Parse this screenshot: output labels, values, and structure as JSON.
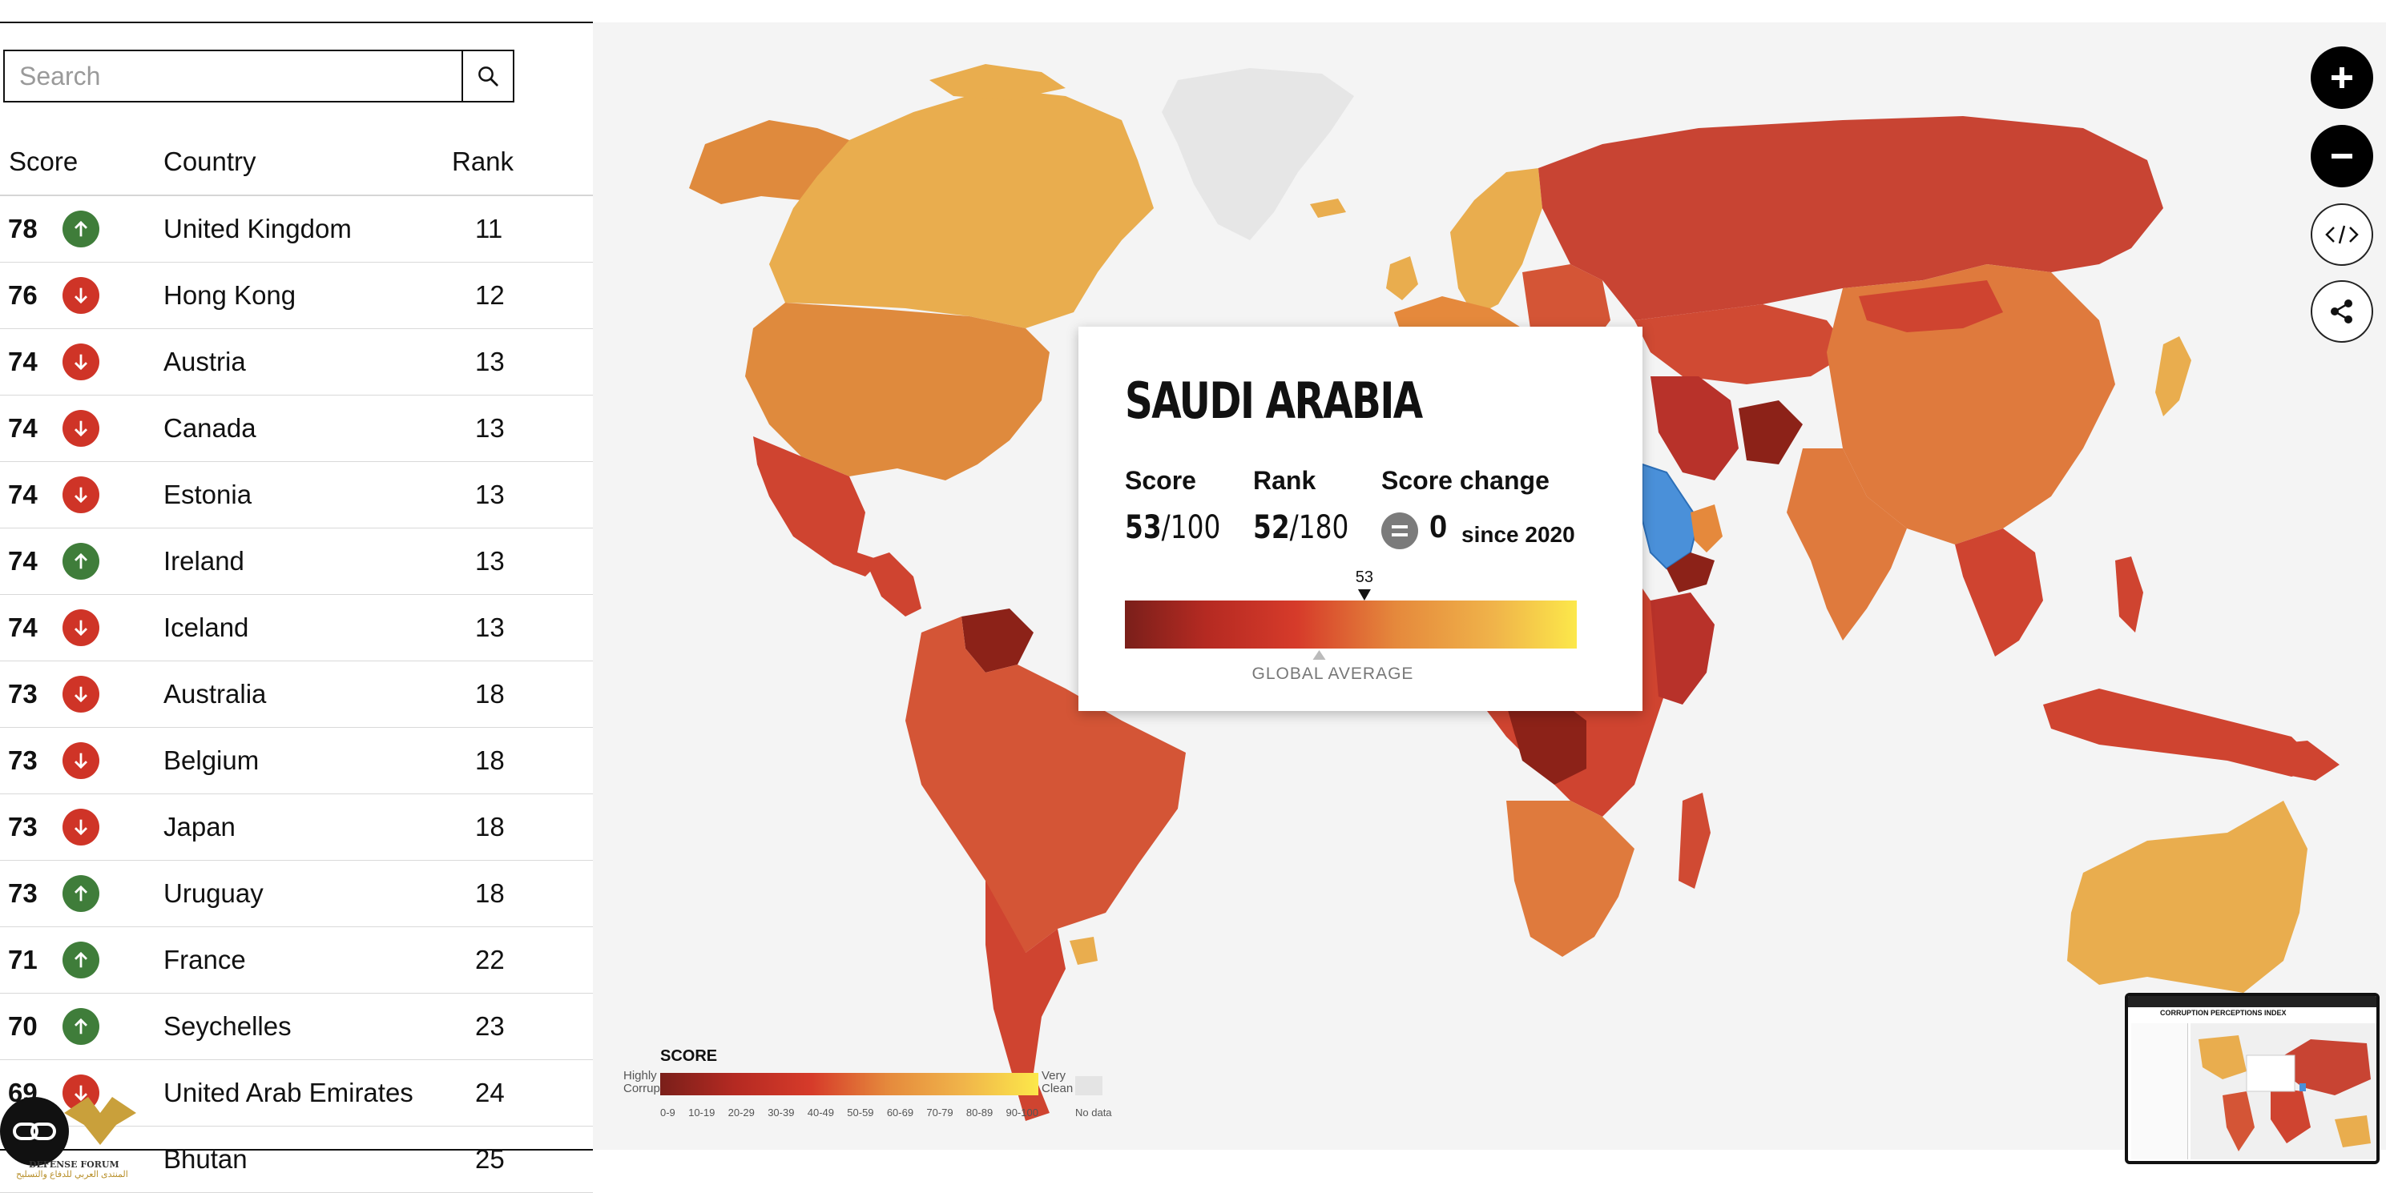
{
  "search": {
    "placeholder": "Search"
  },
  "table": {
    "headers": {
      "score": "Score",
      "country": "Country",
      "rank": "Rank"
    },
    "rows": [
      {
        "score": "78",
        "trend": "up",
        "country": "United Kingdom",
        "rank": "11"
      },
      {
        "score": "76",
        "trend": "down",
        "country": "Hong Kong",
        "rank": "12"
      },
      {
        "score": "74",
        "trend": "down",
        "country": "Austria",
        "rank": "13"
      },
      {
        "score": "74",
        "trend": "down",
        "country": "Canada",
        "rank": "13"
      },
      {
        "score": "74",
        "trend": "down",
        "country": "Estonia",
        "rank": "13"
      },
      {
        "score": "74",
        "trend": "up",
        "country": "Ireland",
        "rank": "13"
      },
      {
        "score": "74",
        "trend": "down",
        "country": "Iceland",
        "rank": "13"
      },
      {
        "score": "73",
        "trend": "down",
        "country": "Australia",
        "rank": "18"
      },
      {
        "score": "73",
        "trend": "down",
        "country": "Belgium",
        "rank": "18"
      },
      {
        "score": "73",
        "trend": "down",
        "country": "Japan",
        "rank": "18"
      },
      {
        "score": "73",
        "trend": "up",
        "country": "Uruguay",
        "rank": "18"
      },
      {
        "score": "71",
        "trend": "up",
        "country": "France",
        "rank": "22"
      },
      {
        "score": "70",
        "trend": "up",
        "country": "Seychelles",
        "rank": "23"
      },
      {
        "score": "69",
        "trend": "down",
        "country": "United Arab Emirates",
        "rank": "24"
      },
      {
        "score": "",
        "trend": "none",
        "country": "Bhutan",
        "rank": "25"
      }
    ]
  },
  "popup": {
    "title": "SAUDI ARABIA",
    "score_label": "Score",
    "score_value": "53",
    "score_max": "/100",
    "rank_label": "Rank",
    "rank_value": "52",
    "rank_max": "/180",
    "change_label": "Score change",
    "change_value": "0",
    "change_since": "since 2020",
    "marker_value": "53",
    "global_average_label": "GLOBAL AVERAGE",
    "score_fraction": 0.53,
    "global_average_fraction": 0.43
  },
  "legend": {
    "title": "SCORE",
    "highly_corrupt": "Highly Corrupt",
    "very_clean": "Very Clean",
    "ranges": [
      "0-9",
      "10-19",
      "20-29",
      "30-39",
      "40-49",
      "50-59",
      "60-69",
      "70-79",
      "80-89",
      "90-100"
    ],
    "no_data": "No data"
  },
  "minimap": {
    "title": "CORRUPTION PERCEPTIONS INDEX"
  },
  "watermark": {
    "text_en": "DEFENSE FORUM",
    "text_ar": "المنتدى العربي للدفاع والتسليح"
  },
  "colors": {
    "up": "#3f7d3a",
    "down": "#cf3427",
    "selected": "#4a90d9",
    "ocean": "#f4f4f4",
    "nodata": "#e6e6e6"
  },
  "icons": {
    "search": "search-icon",
    "up": "arrow-up-icon",
    "down": "arrow-down-icon",
    "zoom_in": "plus-icon",
    "zoom_out": "minus-icon",
    "embed": "code-icon",
    "share": "share-icon",
    "change": "equals-icon"
  }
}
